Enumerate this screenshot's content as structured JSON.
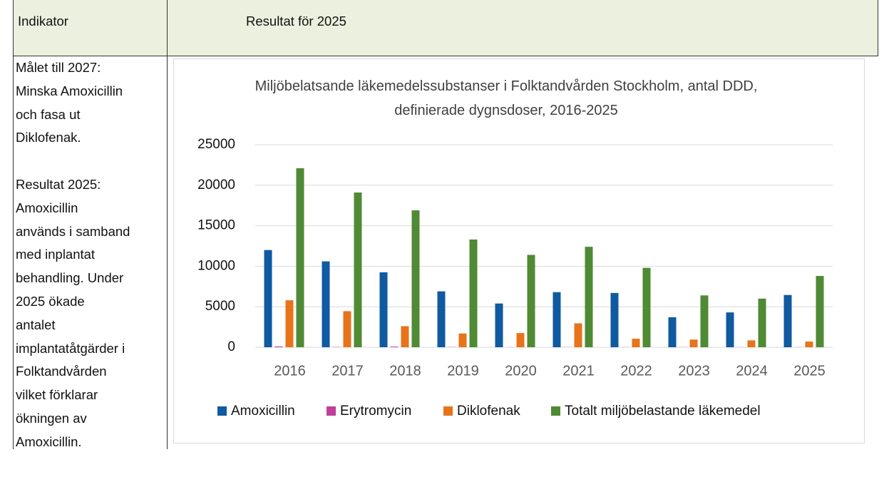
{
  "header": {
    "indicator": "Indikator",
    "result": "Resultat för 2025"
  },
  "indicator_text": [
    [
      "Målet till 2027:",
      "Minska Amoxicillin",
      "och fasa ut",
      "Diklofenak."
    ],
    [
      "Resultat 2025:",
      "Amoxicillin",
      "används i samband",
      "med inplantat",
      "behandling. Under",
      "2025 ökade",
      "antalet",
      "implantatåtgärder i",
      "Folktandvården",
      "vilket förklarar",
      "ökningen av",
      "Amoxicillin."
    ]
  ],
  "chart_data": {
    "type": "bar",
    "title": "Miljöbelatsande läkemedelssubstanser i Folktandvården Stockholm, antal DDD, definierade dygnsdoser, 2016-2025",
    "categories": [
      "2016",
      "2017",
      "2018",
      "2019",
      "2020",
      "2021",
      "2022",
      "2023",
      "2024",
      "2025"
    ],
    "series": [
      {
        "name": "Amoxicillin",
        "color": "#0f5aa0",
        "values": [
          12000,
          10600,
          9250,
          6900,
          5400,
          6800,
          6700,
          3700,
          4300,
          6450
        ]
      },
      {
        "name": "Erytromycin",
        "color": "#c0409a",
        "values": [
          100,
          30,
          80,
          20,
          10,
          10,
          10,
          10,
          10,
          10
        ]
      },
      {
        "name": "Diklofenak",
        "color": "#e8731a",
        "values": [
          5800,
          4450,
          2600,
          1700,
          1750,
          2950,
          1050,
          950,
          850,
          700
        ]
      },
      {
        "name": "Totalt miljöbelastande läkemedel",
        "color": "#4f8a34",
        "values": [
          22100,
          19100,
          16900,
          13300,
          11400,
          12400,
          9800,
          6400,
          6000,
          8800
        ]
      }
    ],
    "ylim": [
      0,
      25000
    ],
    "yticks": [
      0,
      5000,
      10000,
      15000,
      20000,
      25000
    ],
    "grid": true,
    "legend": "bottom"
  }
}
